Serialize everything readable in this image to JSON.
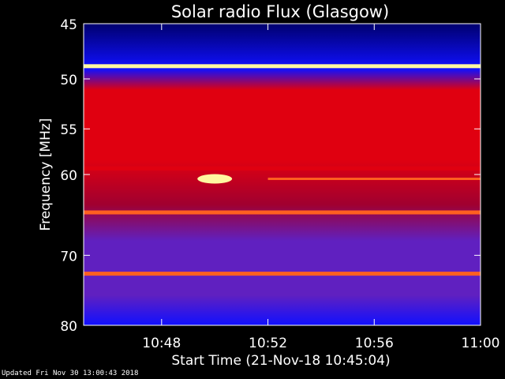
{
  "chart_data": {
    "type": "heatmap",
    "title": "Solar radio Flux (Glasgow)",
    "ylabel": "Frequency [MHz]",
    "xlabel": "Start Time (21-Nov-18 10:45:04)",
    "ylim": [
      45,
      80
    ],
    "y_axis_reversed": true,
    "y_scale": "log",
    "yticks": [
      45,
      50,
      55,
      60,
      70,
      80
    ],
    "xlim": [
      "10:45:04",
      "11:00:00"
    ],
    "xticks": [
      "10:48",
      "10:52",
      "10:56",
      "11:00"
    ],
    "colormap": [
      "#00006e",
      "#1010ff",
      "#6020c0",
      "#a00030",
      "#e00010",
      "#ff6020",
      "#fff8a0"
    ],
    "features": [
      {
        "name": "bright band",
        "freq_mhz": 48.8,
        "level": 1.0
      },
      {
        "name": "bright band",
        "freq_mhz": 52.7,
        "level": 0.6
      },
      {
        "name": "bright band",
        "freq_mhz": 59.3,
        "level": 0.7
      },
      {
        "name": "bright band",
        "freq_mhz": 64.5,
        "level": 0.75
      },
      {
        "name": "bright band",
        "freq_mhz": 72.5,
        "level": 0.85
      },
      {
        "name": "burst",
        "time": "10:50:00",
        "freq_mhz": 60.5,
        "level": 1.0
      },
      {
        "name": "drifting emission",
        "time_start": "10:52:00",
        "time_end": "11:00:00",
        "freq_mhz": 60.5,
        "level": 0.6
      }
    ]
  },
  "footer": {
    "updated": "Updated Fri Nov 30 13:00:43 2018"
  }
}
